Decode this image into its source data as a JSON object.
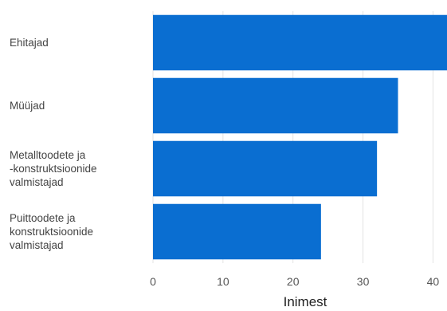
{
  "chart_data": {
    "type": "bar",
    "orientation": "horizontal",
    "categories": [
      "Ehitajad",
      "Müüjad",
      "Metalltoodete ja\n-konstruktsioonide\nvalmistajad",
      "Puittoodete ja\nkonstruktsioonide\nvalmistajad"
    ],
    "values": [
      42,
      35,
      32,
      24
    ],
    "xlabel": "Inimest",
    "ylabel": "",
    "xlim": [
      0,
      42
    ],
    "xticks": [
      0,
      10,
      20,
      30,
      40
    ],
    "grid": "vertical",
    "bar_color": "#0a6ed1"
  }
}
